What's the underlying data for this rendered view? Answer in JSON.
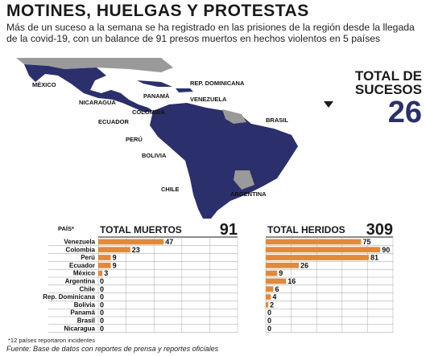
{
  "title": "MOTINES, HUELGAS Y PROTESTAS",
  "subtitle": "Más de un suceso a la semana se ha registrado en las prisiones de la región desde la llegada de la covid-19, con un balance de 91 presos muertos en hechos violentos en 5 países",
  "map": {
    "labels": [
      "MÉXICO",
      "REP. DOMINICANA",
      "PANAMÁ",
      "NICARAGUA",
      "VENEZUELA",
      "COLOMBIA",
      "ECUADOR",
      "BRASIL",
      "PERÚ",
      "BOLIVIA",
      "CHILE",
      "ARGENTINA"
    ]
  },
  "total_sucesos": {
    "label": "TOTAL DE SUCESOS",
    "value": "26"
  },
  "table": {
    "country_header": "PAÍS*",
    "countries": [
      "Venezuela",
      "Colombia",
      "Perú",
      "Ecuador",
      "México",
      "Argentina",
      "Chile",
      "Rep. Dominicana",
      "Bolivia",
      "Panamá",
      "Brasil",
      "Nicaragua"
    ]
  },
  "chart_data": [
    {
      "type": "bar",
      "title": "TOTAL MUERTOS",
      "total": "91",
      "categories": [
        "Venezuela",
        "Colombia",
        "Perú",
        "Ecuador",
        "México",
        "Argentina",
        "Chile",
        "Rep. Dominicana",
        "Bolivia",
        "Panamá",
        "Brasil",
        "Nicaragua"
      ],
      "values": [
        47,
        23,
        9,
        9,
        3,
        0,
        0,
        0,
        0,
        0,
        0,
        0
      ],
      "xlim": [
        0,
        100
      ],
      "xticks": [
        0,
        20,
        40,
        60,
        80,
        100
      ],
      "color": "#e08a3c"
    },
    {
      "type": "bar",
      "title": "TOTAL HERIDOS",
      "total": "309",
      "categories": [
        "Venezuela",
        "Colombia",
        "Perú",
        "Ecuador",
        "México",
        "Argentina",
        "Chile",
        "Rep. Dominicana",
        "Bolivia",
        "Panamá",
        "Brasil",
        "Nicaragua"
      ],
      "values": [
        75,
        90,
        81,
        26,
        9,
        16,
        6,
        4,
        2,
        0,
        0,
        0
      ],
      "xlim": [
        0,
        100
      ],
      "xticks": [
        0,
        20,
        40,
        60,
        80,
        100
      ],
      "color": "#e08a3c"
    }
  ],
  "footnote": "*12 países reportaron incidentes",
  "source": "Fuente: Base de datos con reportes de prensa y reportes oficiales",
  "colors": {
    "map_highlight": "#2b2f6b",
    "map_other": "#9a9a9a",
    "bar": "#e08a3c"
  }
}
